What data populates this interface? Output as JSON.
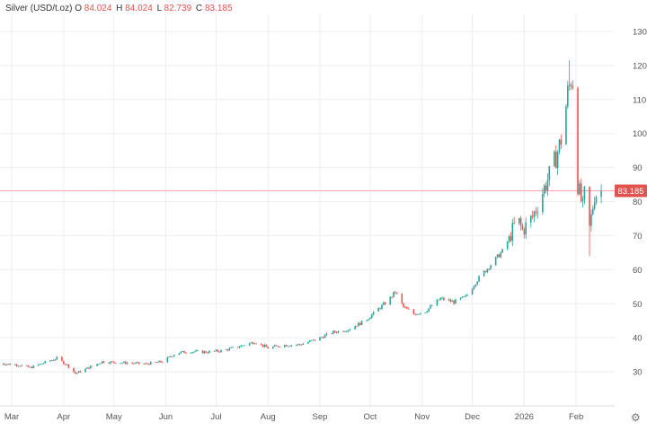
{
  "legend": {
    "symbol": "Silver (USD/t.oz)",
    "o_label": "O",
    "o_value": "84.024",
    "h_label": "H",
    "h_value": "84.024",
    "l_label": "L",
    "l_value": "82.739",
    "c_label": "C",
    "c_value": "83.185"
  },
  "last_price_label": "83.185",
  "colors": {
    "up": "#26a69a",
    "down": "#ef5350",
    "grid": "#eeeeee",
    "price_line": "#f4a6a6",
    "axis_text": "#555555",
    "price_tag": "#e0534f"
  },
  "settings_icon": "gear-icon",
  "chart_data": {
    "type": "candlestick",
    "title": "Silver (USD/t.oz)",
    "ylim": [
      20,
      135
    ],
    "y_ticks": [
      30,
      40,
      50,
      60,
      70,
      80,
      90,
      100,
      110,
      120,
      130
    ],
    "x_ticks": [
      "Mar",
      "Apr",
      "May",
      "Jun",
      "Jul",
      "Aug",
      "Sep",
      "Oct",
      "Nov",
      "Dec",
      "2026",
      "Feb"
    ],
    "last_close": 83.185,
    "grid": true,
    "series": [
      {
        "name": "Silver (USD/t.oz)",
        "path": [
          [
            "2025-02-21",
            32.5
          ],
          [
            "2025-03-05",
            32.0
          ],
          [
            "2025-03-12",
            31.2
          ],
          [
            "2025-03-21",
            32.8
          ],
          [
            "2025-03-28",
            34.0
          ],
          [
            "2025-04-03",
            32.0
          ],
          [
            "2025-04-08",
            29.5
          ],
          [
            "2025-04-14",
            30.8
          ],
          [
            "2025-04-24",
            33.0
          ],
          [
            "2025-05-01",
            32.8
          ],
          [
            "2025-05-10",
            32.6
          ],
          [
            "2025-05-20",
            32.3
          ],
          [
            "2025-05-30",
            33.0
          ],
          [
            "2025-06-07",
            35.5
          ],
          [
            "2025-06-15",
            36.0
          ],
          [
            "2025-06-25",
            35.8
          ],
          [
            "2025-07-05",
            36.2
          ],
          [
            "2025-07-15",
            37.5
          ],
          [
            "2025-07-24",
            38.8
          ],
          [
            "2025-08-01",
            37.0
          ],
          [
            "2025-08-09",
            37.8
          ],
          [
            "2025-08-20",
            38.0
          ],
          [
            "2025-08-30",
            39.5
          ],
          [
            "2025-09-08",
            41.5
          ],
          [
            "2025-09-18",
            42.5
          ],
          [
            "2025-09-28",
            45.0
          ],
          [
            "2025-10-06",
            48.5
          ],
          [
            "2025-10-12",
            51.0
          ],
          [
            "2025-10-16",
            53.5
          ],
          [
            "2025-10-21",
            49.0
          ],
          [
            "2025-10-27",
            47.0
          ],
          [
            "2025-11-03",
            47.8
          ],
          [
            "2025-11-12",
            51.5
          ],
          [
            "2025-11-20",
            50.5
          ],
          [
            "2025-11-27",
            52.0
          ],
          [
            "2025-12-04",
            57.0
          ],
          [
            "2025-12-12",
            61.5
          ],
          [
            "2025-12-20",
            66.0
          ],
          [
            "2025-12-28",
            75.0
          ],
          [
            "2025-12-31",
            71.5
          ],
          [
            "2026-01-06",
            75.5
          ],
          [
            "2026-01-13",
            84.0
          ],
          [
            "2026-01-17",
            89.0
          ],
          [
            "2026-01-20",
            93.0
          ],
          [
            "2026-01-24",
            100.0
          ],
          [
            "2026-01-27",
            112.0
          ],
          [
            "2026-01-29",
            116.0
          ],
          [
            "2026-01-31",
            114.5
          ],
          [
            "2026-02-02",
            85.0
          ],
          [
            "2026-02-05",
            78.0
          ],
          [
            "2026-02-07",
            86.0
          ],
          [
            "2026-02-09",
            72.0
          ],
          [
            "2026-02-12",
            82.0
          ],
          [
            "2026-02-16",
            83.185
          ]
        ]
      }
    ],
    "notable": {
      "high_wick": 121.5,
      "low_wick": 64.0
    }
  }
}
